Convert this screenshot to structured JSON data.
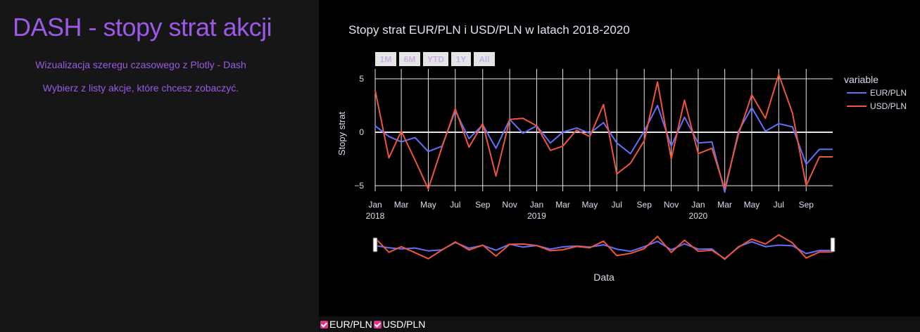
{
  "sidebar": {
    "title": "DASH - stopy strat akcji",
    "subtitle1": "Wizualizacja szeregu czasowego z Plotly - Dash",
    "subtitle2": "Wybierz z listy akcje, które chcesz zobaczyć."
  },
  "range_buttons": [
    "1M",
    "6M",
    "YTD",
    "1Y",
    "All"
  ],
  "checklist": [
    {
      "label": "EUR/PLN",
      "checked": true
    },
    {
      "label": "USD/PLN",
      "checked": true
    }
  ],
  "colors": {
    "EUR/PLN": "#636efa",
    "USD/PLN": "#ef553b",
    "accent": "#9b59e6",
    "checkbox": "#e0338a"
  },
  "chart_data": {
    "type": "line",
    "title": "Stopy strat EUR/PLN i USD/PLN w latach 2018-2020",
    "xlabel": "Data",
    "ylabel": "Stopy strat",
    "legend_title": "variable",
    "legend_position": "top-right",
    "grid": true,
    "ylim": [
      -5.0,
      5.0
    ],
    "xlim": [
      "2018-01-01",
      "2020-10-31"
    ],
    "yticks": [
      -5,
      0,
      5
    ],
    "yticklabels": [
      "−5",
      "0",
      "5"
    ],
    "xticks": [
      {
        "date": "2018-01-01",
        "label": "Jan",
        "year": "2018"
      },
      {
        "date": "2018-03-01",
        "label": "Mar",
        "year": ""
      },
      {
        "date": "2018-05-01",
        "label": "May",
        "year": ""
      },
      {
        "date": "2018-07-01",
        "label": "Jul",
        "year": ""
      },
      {
        "date": "2018-09-01",
        "label": "Sep",
        "year": ""
      },
      {
        "date": "2018-11-01",
        "label": "Nov",
        "year": ""
      },
      {
        "date": "2019-01-01",
        "label": "Jan",
        "year": "2019"
      },
      {
        "date": "2019-03-01",
        "label": "Mar",
        "year": ""
      },
      {
        "date": "2019-05-01",
        "label": "May",
        "year": ""
      },
      {
        "date": "2019-07-01",
        "label": "Jul",
        "year": ""
      },
      {
        "date": "2019-09-01",
        "label": "Sep",
        "year": ""
      },
      {
        "date": "2019-11-01",
        "label": "Nov",
        "year": ""
      },
      {
        "date": "2020-01-01",
        "label": "Jan",
        "year": "2020"
      },
      {
        "date": "2020-03-01",
        "label": "Mar",
        "year": ""
      },
      {
        "date": "2020-05-01",
        "label": "May",
        "year": ""
      },
      {
        "date": "2020-07-01",
        "label": "Jul",
        "year": ""
      },
      {
        "date": "2020-09-01",
        "label": "Sep",
        "year": ""
      }
    ],
    "x": [
      "2018-01-01",
      "2018-02-01",
      "2018-03-01",
      "2018-04-01",
      "2018-05-01",
      "2018-06-01",
      "2018-07-01",
      "2018-08-01",
      "2018-09-01",
      "2018-10-01",
      "2018-11-01",
      "2018-12-01",
      "2019-01-01",
      "2019-02-01",
      "2019-03-01",
      "2019-04-01",
      "2019-05-01",
      "2019-06-01",
      "2019-07-01",
      "2019-08-01",
      "2019-09-01",
      "2019-10-01",
      "2019-11-01",
      "2019-12-01",
      "2020-01-01",
      "2020-02-01",
      "2020-03-01",
      "2020-04-01",
      "2020-05-01",
      "2020-06-01",
      "2020-07-01",
      "2020-08-01",
      "2020-09-01",
      "2020-10-01",
      "2020-10-31"
    ],
    "series": [
      {
        "name": "EUR/PLN",
        "values": [
          0.6,
          -0.4,
          -0.9,
          -0.5,
          -1.8,
          -1.3,
          2.0,
          -0.6,
          0.7,
          -1.5,
          1.2,
          -0.1,
          0.6,
          -1.0,
          0.0,
          0.4,
          -0.1,
          0.9,
          -1.0,
          -2.0,
          0.1,
          2.5,
          -1.3,
          1.4,
          -1.0,
          -0.9,
          -5.6,
          0.1,
          2.3,
          0.1,
          0.8,
          0.5,
          -3.0,
          -1.6,
          -1.6
        ]
      },
      {
        "name": "USD/PLN",
        "values": [
          3.9,
          -2.4,
          0.1,
          -2.6,
          -5.3,
          -1.4,
          2.2,
          -1.4,
          0.8,
          -4.1,
          1.2,
          1.3,
          0.6,
          -1.7,
          -1.3,
          0.2,
          -0.4,
          2.6,
          -3.9,
          -2.9,
          -0.8,
          4.7,
          -2.5,
          3.0,
          -2.0,
          -1.5,
          -5.3,
          -0.2,
          3.5,
          1.3,
          5.4,
          1.8,
          -5.0,
          -2.3,
          -2.3
        ]
      }
    ]
  }
}
